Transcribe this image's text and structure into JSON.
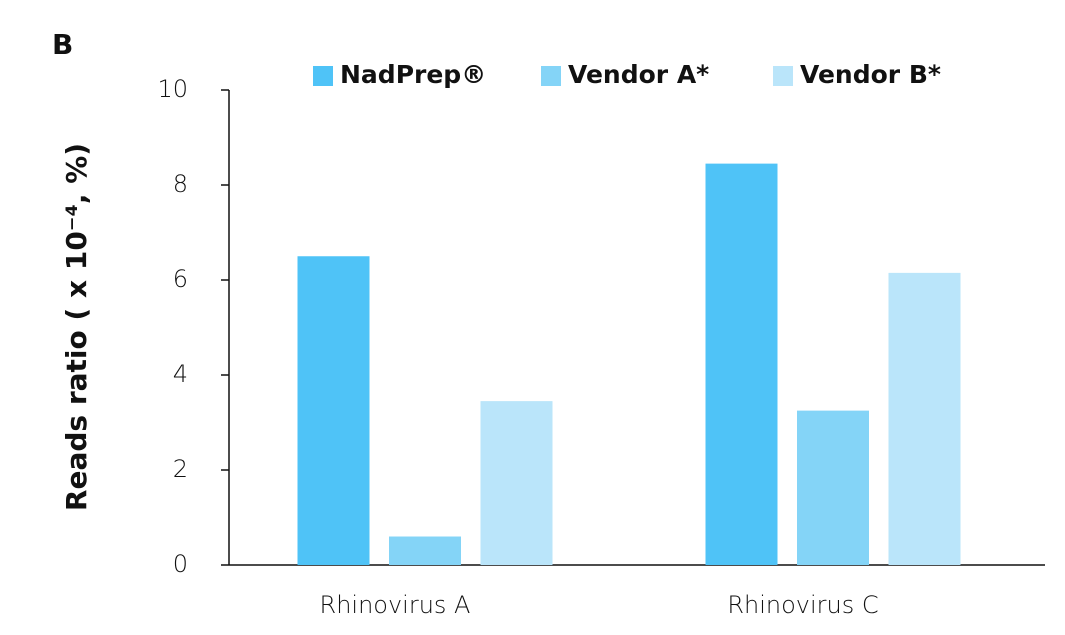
{
  "chart_data": {
    "type": "bar",
    "panel_label": "B",
    "ylabel": "Reads ratio ( x 10⁻⁴, %)",
    "categories": [
      "Rhinovirus A",
      "Rhinovirus C"
    ],
    "series": [
      {
        "name": "NadPrep®",
        "color": "#4fc3f7",
        "values": [
          6.5,
          8.45
        ]
      },
      {
        "name": "Vendor A*",
        "color": "#84d4f7",
        "values": [
          0.6,
          3.25
        ]
      },
      {
        "name": "Vendor B*",
        "color": "#bae5fa",
        "values": [
          3.45,
          6.15
        ]
      }
    ],
    "ylim": [
      0,
      10
    ],
    "yticks": [
      0,
      2,
      4,
      6,
      8,
      10
    ],
    "legend": "top"
  }
}
